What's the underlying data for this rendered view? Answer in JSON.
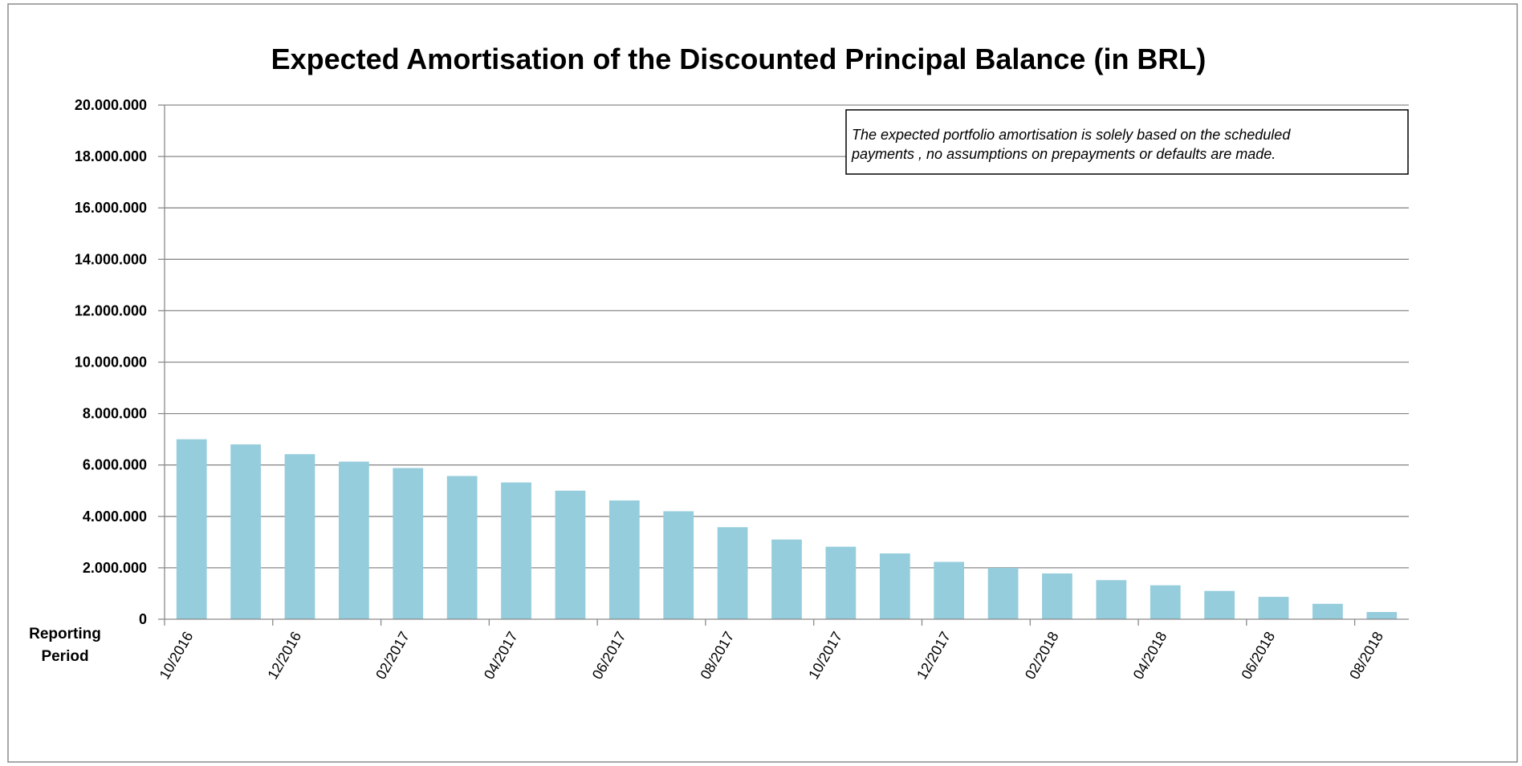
{
  "chart_data": {
    "type": "bar",
    "title": "Expected Amortisation of the Discounted Principal Balance (in BRL)",
    "xlabel": "Reporting Period",
    "ylabel": "",
    "ylim": [
      0,
      20000000
    ],
    "yticks": [
      "0",
      "2.000.000",
      "4.000.000",
      "6.000.000",
      "8.000.000",
      "10.000.000",
      "12.000.000",
      "14.000.000",
      "16.000.000",
      "18.000.000",
      "20.000.000"
    ],
    "grid": true,
    "legend": "none",
    "bar_color": "#95cddc",
    "categories": [
      "10/2016",
      "11/2016",
      "12/2016",
      "01/2017",
      "02/2017",
      "03/2017",
      "04/2017",
      "05/2017",
      "06/2017",
      "07/2017",
      "08/2017",
      "09/2017",
      "10/2017",
      "11/2017",
      "12/2017",
      "01/2018",
      "02/2018",
      "03/2018",
      "04/2018",
      "05/2018",
      "06/2018",
      "07/2018",
      "08/2018"
    ],
    "tick_labels": [
      "10/2016",
      "12/2016",
      "02/2017",
      "04/2017",
      "06/2017",
      "08/2017",
      "10/2017",
      "12/2017",
      "02/2018",
      "04/2018",
      "06/2018",
      "08/2018"
    ],
    "values": [
      7000000,
      6800000,
      6420000,
      6130000,
      5880000,
      5570000,
      5320000,
      5000000,
      4620000,
      4200000,
      3580000,
      3100000,
      2820000,
      2560000,
      2230000,
      2000000,
      1780000,
      1520000,
      1320000,
      1100000,
      870000,
      600000,
      280000
    ],
    "annotation": {
      "lines": [
        "The expected portfolio amortisation is solely based on the scheduled",
        "payments , no assumptions on prepayments or defaults are made."
      ]
    }
  }
}
